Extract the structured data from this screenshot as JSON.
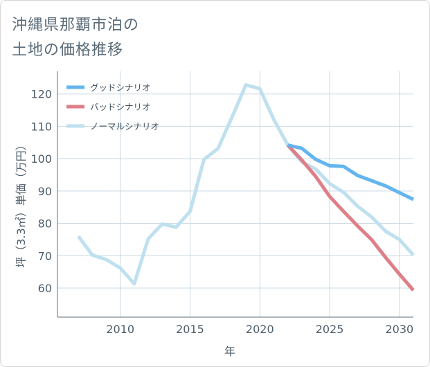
{
  "title_lines": [
    "沖縄県那覇市泊の",
    "土地の価格推移"
  ],
  "colors": {
    "good": "#64b5ee",
    "bad": "#de7f88",
    "normal": "#bfe0ef",
    "grid": "#c9d8e2",
    "axis": "#5a6b78"
  },
  "chart_data": {
    "type": "line",
    "title": "沖縄県那覇市泊の土地の価格推移",
    "xlabel": "年",
    "ylabel": "坪（3.3㎡）単価（万円）",
    "xlim": [
      2005.5,
      2031
    ],
    "ylim": [
      51,
      127
    ],
    "xticks": [
      2010,
      2015,
      2020,
      2025,
      2030
    ],
    "yticks": [
      60,
      70,
      80,
      90,
      100,
      110,
      120
    ],
    "legend_position": "top-left",
    "series": [
      {
        "name": "グッドシナリオ",
        "key": "good",
        "x": [
          2022,
          2023,
          2024,
          2025,
          2026,
          2027,
          2028,
          2029,
          2030,
          2031
        ],
        "y": [
          104.2,
          103.2,
          99.8,
          97.8,
          97.6,
          94.8,
          93.2,
          91.6,
          89.5,
          87.4
        ]
      },
      {
        "name": "バッドシナリオ",
        "key": "bad",
        "x": [
          2022,
          2023,
          2024,
          2025,
          2026,
          2027,
          2028,
          2029,
          2030,
          2031
        ],
        "y": [
          104.2,
          99.6,
          94.5,
          88.3,
          83.7,
          79.2,
          75.0,
          69.5,
          64.3,
          59.3
        ]
      },
      {
        "name": "ノーマルシナリオ",
        "key": "normal",
        "x": [
          2007,
          2008,
          2009,
          2010,
          2011,
          2012,
          2013,
          2014,
          2015,
          2016,
          2017,
          2018,
          2019,
          2020,
          2021,
          2022,
          2023,
          2024,
          2025,
          2026,
          2027,
          2028,
          2029,
          2030,
          2031
        ],
        "y": [
          76.0,
          70.2,
          68.8,
          66.2,
          61.3,
          75.2,
          79.8,
          78.8,
          83.7,
          99.8,
          103.1,
          112.8,
          122.8,
          121.6,
          112.1,
          104.2,
          99.0,
          96.8,
          92.3,
          89.6,
          85.3,
          82.0,
          77.6,
          75.0,
          70.2
        ]
      }
    ]
  }
}
